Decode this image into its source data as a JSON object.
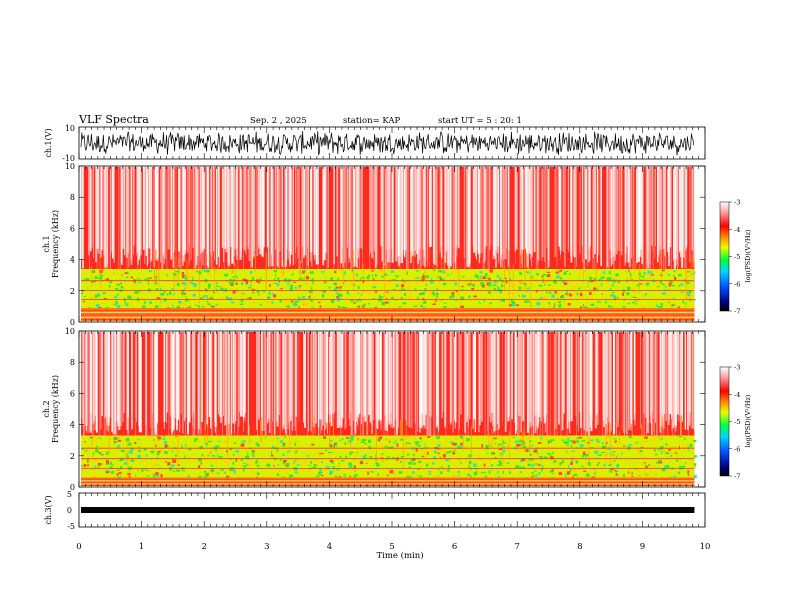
{
  "header": {
    "title": "VLF Spectra",
    "date": "Sep. 2 , 2025",
    "station": "station= KAP",
    "start": "start UT =  5 : 20: 1"
  },
  "chart_data": [
    {
      "type": "line",
      "name": "ch1-waveform",
      "ylabel": "ch.1(V)",
      "ylim": [
        -10,
        10
      ],
      "yticks": [
        "10",
        "-10"
      ],
      "amplitude": 8
    },
    {
      "type": "heatmap",
      "name": "ch1-spectrogram",
      "ylabel_line1": "ch.1",
      "ylabel_line2": "Frequency (kHz)",
      "ylim": [
        0,
        10
      ],
      "yticks": [
        "0",
        "2",
        "4",
        "6",
        "8",
        "10"
      ],
      "bands_khz": [
        {
          "from": 0.9,
          "to": 3.4,
          "level": "green-yellow"
        },
        {
          "from": 0.0,
          "to": 0.9,
          "level": "orange-red"
        }
      ],
      "colorbar": {
        "label": "log(PSD)(V²/Hz)",
        "ticks": [
          "-3",
          "-4",
          "-5",
          "-6",
          "-7"
        ],
        "range": [
          -7,
          -3
        ]
      }
    },
    {
      "type": "heatmap",
      "name": "ch2-spectrogram",
      "ylabel_line1": "ch.2",
      "ylabel_line2": "Frequency (kHz)",
      "ylim": [
        0,
        10
      ],
      "yticks": [
        "0",
        "2",
        "4",
        "6",
        "8",
        "10"
      ],
      "bands_khz": [
        {
          "from": 0.6,
          "to": 3.3,
          "level": "green-yellow"
        },
        {
          "from": 0.0,
          "to": 0.6,
          "level": "orange-red"
        }
      ],
      "colorbar": {
        "label": "log(PSD)(V²/Hz)",
        "ticks": [
          "-3",
          "-4",
          "-5",
          "-6",
          "-7"
        ],
        "range": [
          -7,
          -3
        ]
      }
    },
    {
      "type": "line",
      "name": "ch3-waveform",
      "ylabel": "ch.3(V)",
      "ylim": [
        -5,
        5
      ],
      "yticks": [
        "5",
        "0",
        "-5"
      ],
      "level": 0
    }
  ],
  "xaxis": {
    "label": "Time (min)",
    "range": [
      0,
      10
    ],
    "ticks": [
      "0",
      "1",
      "2",
      "3",
      "4",
      "5",
      "6",
      "7",
      "8",
      "9",
      "10"
    ],
    "data_end": 9.83
  }
}
